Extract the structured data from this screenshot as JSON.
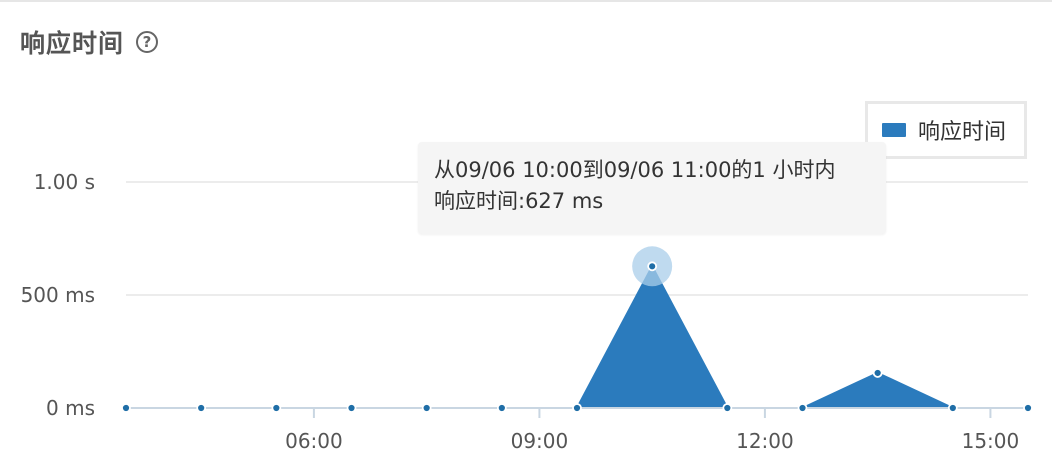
{
  "panel": {
    "title": "响应时间",
    "help_icon": "question-circle-icon"
  },
  "legend": {
    "label": "响应时间"
  },
  "tooltip": {
    "line1": "从09/06 10:00到09/06 11:00的1 小时内",
    "line2": "响应时间:627 ms"
  },
  "colors": {
    "series": "#2b7bbd",
    "gridline": "#e6e6e6",
    "axis": "#c9d6e2",
    "point": "#1f6ea7",
    "highlight": "#a9cde9"
  },
  "chart_data": {
    "type": "area",
    "title": "响应时间",
    "x_unit": "hour",
    "x": [
      "03:30",
      "04:30",
      "05:30",
      "06:30",
      "07:30",
      "08:30",
      "09:30",
      "10:30",
      "11:30",
      "12:30",
      "13:30",
      "14:30",
      "15:30"
    ],
    "series": [
      {
        "name": "响应时间",
        "values": [
          0,
          0,
          0,
          0,
          0,
          0,
          0,
          627,
          0,
          0,
          155,
          0,
          0
        ]
      }
    ],
    "x_ticks": [
      {
        "label": "06:00",
        "hour": 6
      },
      {
        "label": "09:00",
        "hour": 9
      },
      {
        "label": "12:00",
        "hour": 12
      },
      {
        "label": "15:00",
        "hour": 15
      }
    ],
    "y_ticks": [
      {
        "label": "0 ms",
        "value": 0
      },
      {
        "label": "500 ms",
        "value": 500
      },
      {
        "label": "1.00 s",
        "value": 1000
      }
    ],
    "xlim": [
      "03:30",
      "15:30"
    ],
    "ylim": [
      0,
      1000
    ],
    "grid": true,
    "legend_position": "top-right",
    "highlighted_index": 7
  }
}
